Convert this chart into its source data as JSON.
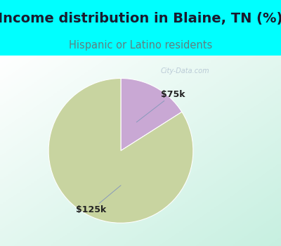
{
  "title": "Income distribution in Blaine, TN (%)",
  "subtitle": "Hispanic or Latino residents",
  "title_color": "#1a1a2e",
  "subtitle_color": "#5f8080",
  "background_top": "#00ffff",
  "slice_values": [
    84,
    16
  ],
  "slice_colors": [
    "#c8d4a0",
    "#c9a8d4"
  ],
  "label_75k": "$75k",
  "label_125k": "$125k",
  "watermark": "City-Data.com",
  "title_fontsize": 14,
  "subtitle_fontsize": 10.5
}
